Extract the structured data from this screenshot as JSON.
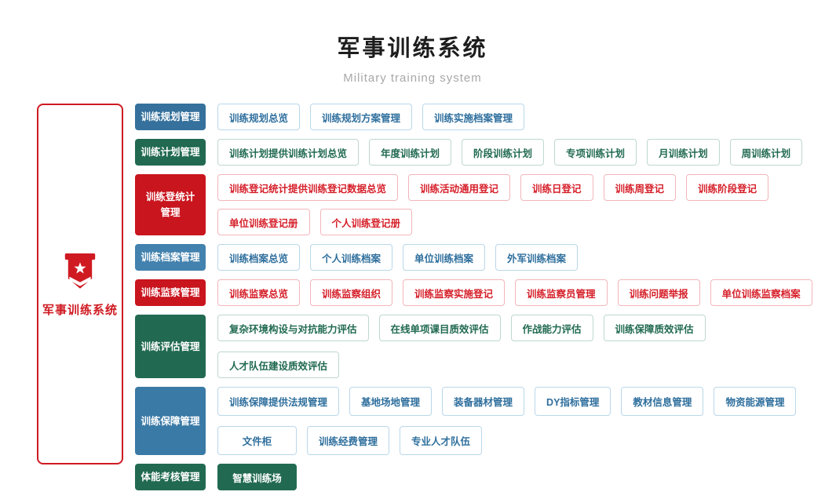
{
  "header": {
    "title": "军事训练系统",
    "subtitle": "Military training system"
  },
  "sidebar": {
    "label": "军事训练系统",
    "icon": "military-banner-icon",
    "border_color": "#cf1a22",
    "text_color": "#cf1a22"
  },
  "theme_colors": {
    "blue_category": "#35719c",
    "blue_category_light": "#4382ae",
    "blue_category_mid": "#3a7aa6",
    "blue_item_text": "#2f6f9d",
    "blue_item_border": "#b9d7ea",
    "green_category": "#216a51",
    "green_item_text": "#216a51",
    "green_item_border": "#bed8cd",
    "red_category": "#c9151e",
    "red_item_text": "#d6202a",
    "red_item_border": "#f2b6ba"
  },
  "groups": [
    {
      "label": "训练规划管理",
      "theme": "blue",
      "color": "#35719c",
      "lines": [
        [
          "训练规划总览",
          "训练规划方案管理",
          "训练实施档案管理"
        ]
      ]
    },
    {
      "label": "训练计划管理",
      "theme": "green",
      "color": "#216a51",
      "lines": [
        [
          "训练计划提供训练计划总览",
          "年度训练计划",
          "阶段训练计划",
          "专项训练计划",
          "月训练计划",
          "周训练计划"
        ]
      ]
    },
    {
      "label": "训练登统计管理",
      "label_display": "训练登统计\n管理",
      "theme": "red",
      "color": "#c9151e",
      "lines": [
        [
          "训练登记统计提供训练登记数据总览",
          "训练活动通用登记",
          "训练日登记",
          "训练周登记",
          "训练阶段登记"
        ],
        [
          "单位训练登记册",
          "个人训练登记册"
        ]
      ]
    },
    {
      "label": "训练档案管理",
      "theme": "blue",
      "color": "#4382ae",
      "lines": [
        [
          "训练档案总览",
          "个人训练档案",
          "单位训练档案",
          "外军训练档案"
        ]
      ]
    },
    {
      "label": "训练监察管理",
      "theme": "red",
      "color": "#c9151e",
      "lines": [
        [
          "训练监察总览",
          "训练监察组织",
          "训练监察实施登记",
          "训练监察员管理",
          "训练问题举报",
          "单位训练监察档案"
        ]
      ]
    },
    {
      "label": "训练评估管理",
      "theme": "green",
      "color": "#216a51",
      "lines": [
        [
          "复杂环境构设与对抗能力评估",
          "在线单项课目质效评估",
          "作战能力评估",
          "训练保障质效评估",
          "人才队伍建设质效评估"
        ]
      ]
    },
    {
      "label": "训练保障管理",
      "theme": "blue",
      "color": "#3a7aa6",
      "lines": [
        [
          "训练保障提供法规管理",
          "基地场地管理",
          "装备器材管理",
          "DY指标管理",
          "教材信息管理",
          "物资能源管理"
        ],
        [
          "文件柜",
          "训练经费管理",
          "专业人才队伍"
        ]
      ]
    },
    {
      "label": "体能考核管理",
      "theme": "green",
      "color": "#216a51",
      "lines": [
        [
          "智慧训练场"
        ]
      ]
    }
  ]
}
